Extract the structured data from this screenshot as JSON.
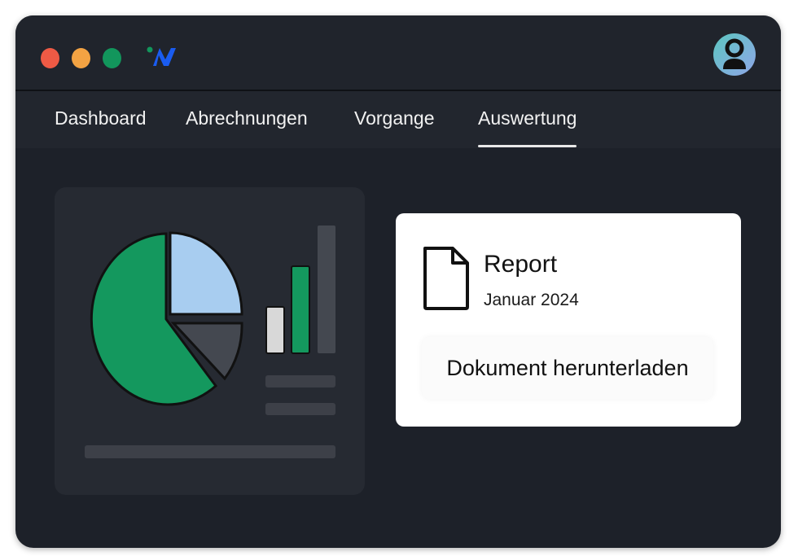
{
  "window": {
    "traffic_lights": [
      {
        "name": "close",
        "color": "#ee5a45"
      },
      {
        "name": "minimize",
        "color": "#f3a343"
      },
      {
        "name": "maximize",
        "color": "#12965c"
      }
    ],
    "logo_icon": "w-logo-icon",
    "avatar_icon": "user-avatar-icon"
  },
  "nav": {
    "tabs": [
      {
        "label": "Dashboard"
      },
      {
        "label": "Abrechnungen"
      },
      {
        "label": "Vorgange"
      },
      {
        "label": "Auswertung",
        "active": true
      }
    ]
  },
  "illustration": {
    "type": "decorative-chart",
    "colors": {
      "green": "#14985e",
      "light_blue": "#a8cdf0",
      "gray": "#444850",
      "white_bar": "#d8d8d8"
    }
  },
  "report_card": {
    "icon": "document-icon",
    "title": "Report",
    "subtitle": "Januar 2024",
    "download_label": "Dokument herunterladen"
  }
}
